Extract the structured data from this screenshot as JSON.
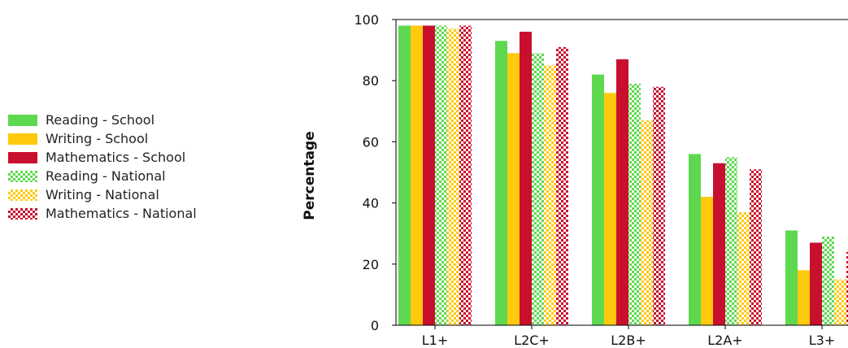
{
  "chart_data": {
    "type": "bar",
    "title": "",
    "xlabel": "",
    "ylabel": "Percentage",
    "ylim": [
      0,
      100
    ],
    "yticks": [
      0,
      20,
      40,
      60,
      80,
      100
    ],
    "grid": false,
    "legend_position": "left",
    "categories": [
      "L1+",
      "L2C+",
      "L2B+",
      "L2A+",
      "L3+"
    ],
    "series": [
      {
        "name": "Reading - School",
        "color": "#5ed94f",
        "pattern": "solid",
        "values": [
          98,
          93,
          82,
          56,
          31
        ]
      },
      {
        "name": "Writing - School",
        "color": "#ffc90e",
        "pattern": "solid",
        "values": [
          98,
          89,
          76,
          42,
          18
        ]
      },
      {
        "name": "Mathematics - School",
        "color": "#c8102e",
        "pattern": "solid",
        "values": [
          98,
          96,
          87,
          53,
          27
        ]
      },
      {
        "name": "Reading - National",
        "color": "#5ed94f",
        "pattern": "checker",
        "values": [
          98,
          89,
          79,
          55,
          29
        ]
      },
      {
        "name": "Writing - National",
        "color": "#ffc90e",
        "pattern": "checker",
        "values": [
          97,
          85,
          67,
          37,
          15
        ]
      },
      {
        "name": "Mathematics - National",
        "color": "#c8102e",
        "pattern": "checker",
        "values": [
          98,
          91,
          78,
          51,
          24
        ]
      }
    ]
  }
}
